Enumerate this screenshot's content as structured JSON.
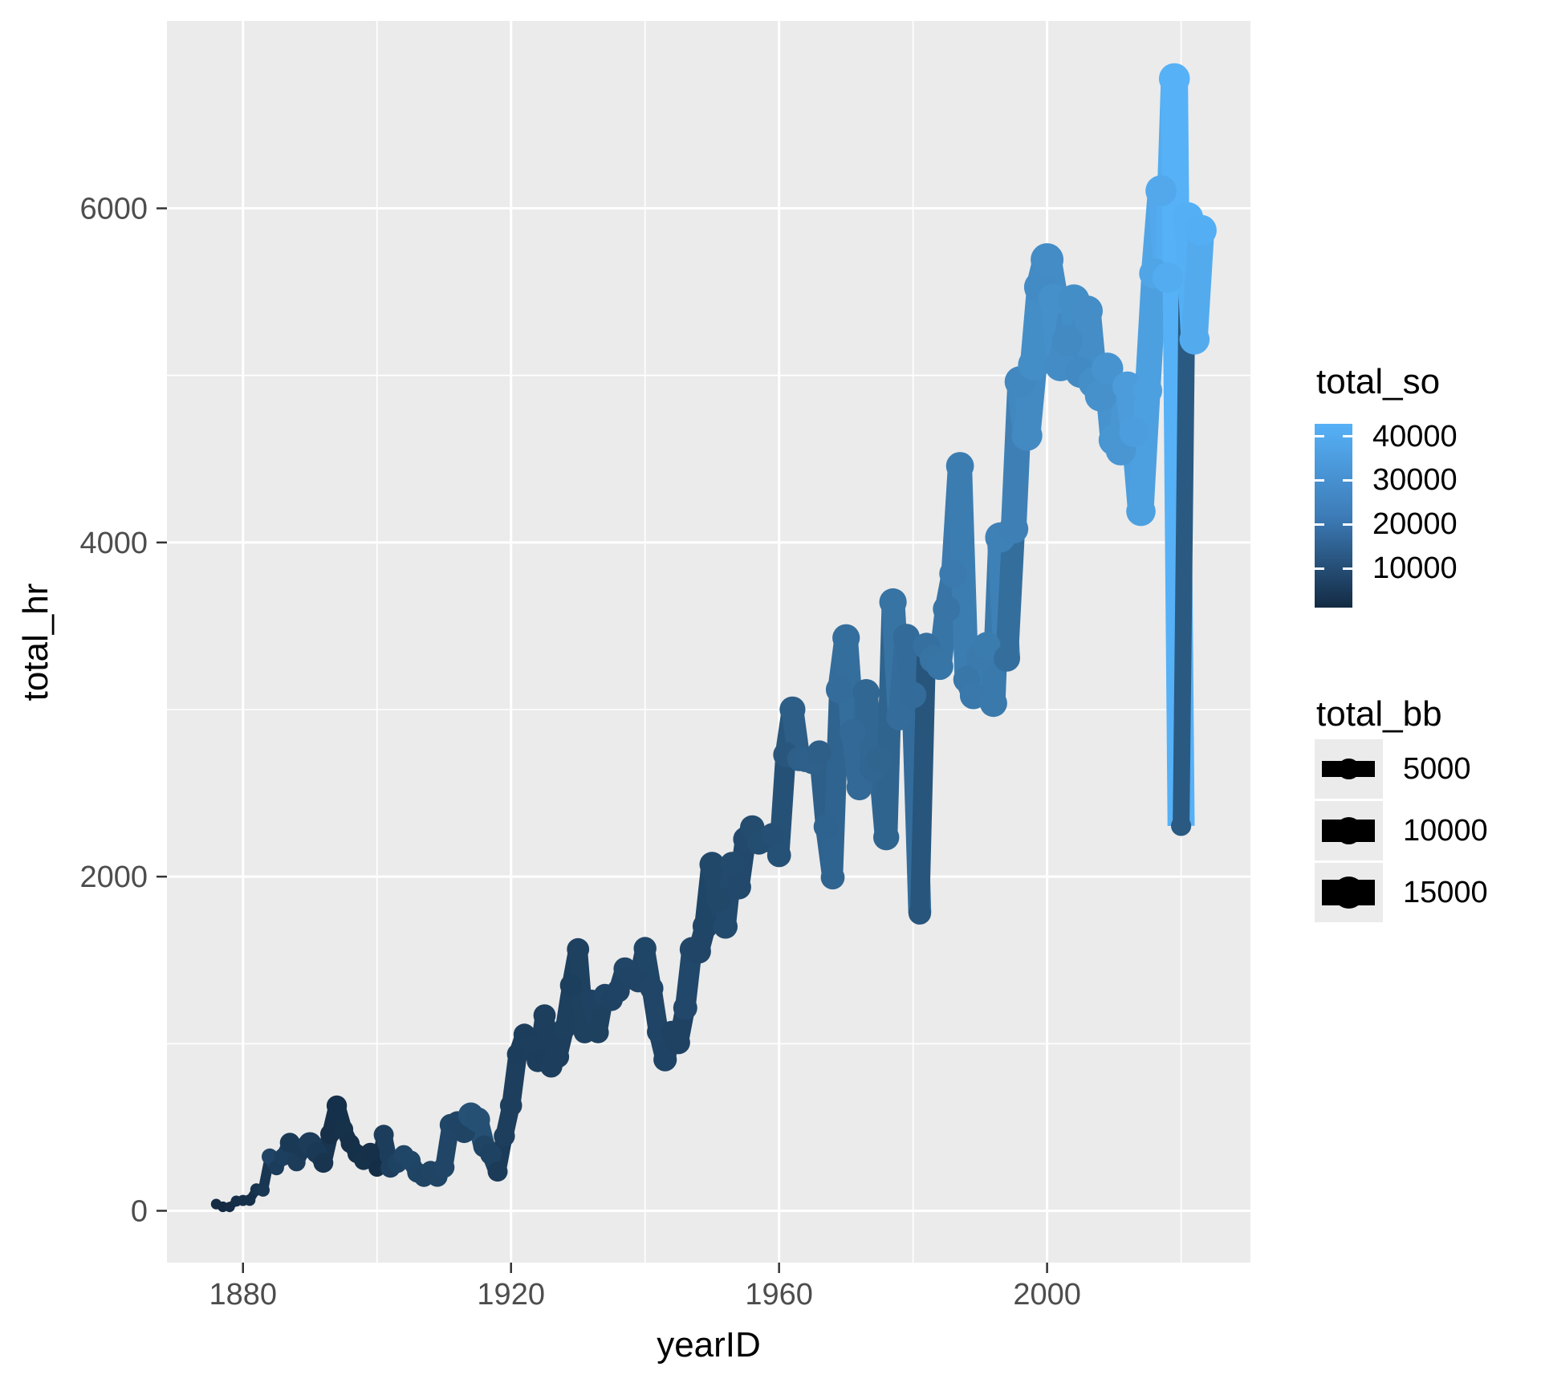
{
  "chart_data": {
    "type": "line",
    "title": "",
    "xlabel": "yearID",
    "ylabel": "total_hr",
    "x_ticks": [
      1880,
      1920,
      1960,
      2000
    ],
    "x_tick_labels": [
      "1880",
      "1920",
      "1960",
      "2000"
    ],
    "x_minor_ticks": [
      1900,
      1940,
      1980,
      2020
    ],
    "y_ticks": [
      0,
      2000,
      4000,
      6000
    ],
    "y_tick_labels": [
      "0",
      "2000",
      "4000",
      "6000"
    ],
    "y_minor_ticks": [
      1000,
      3000,
      5000
    ],
    "xlim": [
      1868.65,
      2030.35
    ],
    "ylim": [
      -310,
      7122
    ],
    "grid": true,
    "legend_position": "right",
    "color_scale": {
      "title": "total_so",
      "low_color": "#132B43",
      "high_color": "#56B1F7",
      "domain": [
        1064,
        42823
      ],
      "ticks": [
        40000,
        30000,
        20000,
        10000
      ],
      "tick_labels": [
        "40000",
        "30000",
        "20000",
        "10000"
      ]
    },
    "size_scale": {
      "title": "total_bb",
      "domain": [
        300,
        18237
      ],
      "ticks": [
        5000,
        10000,
        15000
      ],
      "tick_labels": [
        "5000",
        "10000",
        "15000"
      ]
    },
    "columns": [
      "yearID",
      "total_hr",
      "total_so",
      "total_bb"
    ],
    "points": [
      [
        1876,
        40,
        1400,
        340
      ],
      [
        1877,
        24,
        1064,
        345
      ],
      [
        1878,
        23,
        1575,
        300
      ],
      [
        1879,
        58,
        2367,
        510
      ],
      [
        1880,
        62,
        2716,
        585
      ],
      [
        1881,
        64,
        2268,
        685
      ],
      [
        1882,
        127,
        3835,
        1000
      ],
      [
        1883,
        124,
        4603,
        1330
      ],
      [
        1884,
        324,
        9006,
        2970
      ],
      [
        1885,
        258,
        6323,
        2300
      ],
      [
        1886,
        323,
        7445,
        3900
      ],
      [
        1887,
        407,
        5315,
        5400
      ],
      [
        1888,
        290,
        6411,
        4000
      ],
      [
        1889,
        375,
        5485,
        6000
      ],
      [
        1890,
        401,
        6492,
        8000
      ],
      [
        1891,
        349,
        5550,
        6200
      ],
      [
        1892,
        287,
        3934,
        5290
      ],
      [
        1893,
        460,
        2716,
        5190
      ],
      [
        1894,
        629,
        2606,
        5700
      ],
      [
        1895,
        488,
        2798,
        4910
      ],
      [
        1896,
        403,
        2727,
        4670
      ],
      [
        1897,
        342,
        2506,
        4600
      ],
      [
        1898,
        300,
        2795,
        4560
      ],
      [
        1899,
        350,
        2651,
        4740
      ],
      [
        1900,
        254,
        2000,
        3250
      ],
      [
        1901,
        455,
        6940,
        5400
      ],
      [
        1902,
        258,
        7000,
        5300
      ],
      [
        1903,
        285,
        8200,
        5300
      ],
      [
        1904,
        334,
        9300,
        5200
      ],
      [
        1905,
        300,
        9350,
        5500
      ],
      [
        1906,
        229,
        8700,
        5400
      ],
      [
        1907,
        203,
        8500,
        5400
      ],
      [
        1908,
        239,
        8800,
        5300
      ],
      [
        1909,
        205,
        8800,
        5800
      ],
      [
        1910,
        260,
        9100,
        6200
      ],
      [
        1911,
        514,
        9450,
        7000
      ],
      [
        1912,
        530,
        8950,
        7100
      ],
      [
        1913,
        472,
        8700,
        7200
      ],
      [
        1914,
        573,
        12800,
        9800
      ],
      [
        1915,
        545,
        12500,
        9600
      ],
      [
        1916,
        385,
        8800,
        6900
      ],
      [
        1917,
        339,
        8200,
        6600
      ],
      [
        1918,
        235,
        6200,
        5400
      ],
      [
        1919,
        447,
        7000,
        6300
      ],
      [
        1920,
        630,
        7150,
        7000
      ],
      [
        1921,
        937,
        6900,
        6650
      ],
      [
        1922,
        1055,
        6900,
        6780
      ],
      [
        1923,
        983,
        7020,
        7270
      ],
      [
        1924,
        897,
        6900,
        7150
      ],
      [
        1925,
        1169,
        7020,
        7150
      ],
      [
        1926,
        864,
        7150,
        7220
      ],
      [
        1927,
        922,
        7150,
        7150
      ],
      [
        1928,
        1093,
        7640,
        7000
      ],
      [
        1929,
        1349,
        7390,
        7390
      ],
      [
        1930,
        1565,
        7880,
        7200
      ],
      [
        1931,
        1068,
        7880,
        6900
      ],
      [
        1932,
        1260,
        8380,
        6410
      ],
      [
        1933,
        1067,
        7880,
        6580
      ],
      [
        1934,
        1291,
        8870,
        7150
      ],
      [
        1935,
        1263,
        8380,
        7270
      ],
      [
        1936,
        1316,
        8620,
        7790
      ],
      [
        1937,
        1449,
        9120,
        7520
      ],
      [
        1938,
        1393,
        8870,
        7910
      ],
      [
        1939,
        1376,
        8870,
        7690
      ],
      [
        1940,
        1571,
        9360,
        7640
      ],
      [
        1941,
        1331,
        9120,
        8130
      ],
      [
        1942,
        1071,
        8870,
        7840
      ],
      [
        1943,
        905,
        8620,
        8130
      ],
      [
        1944,
        1069,
        8380,
        7740
      ],
      [
        1945,
        1007,
        8380,
        7980
      ],
      [
        1946,
        1215,
        10100,
        8670
      ],
      [
        1947,
        1565,
        9610,
        9170
      ],
      [
        1948,
        1553,
        9120,
        9270
      ],
      [
        1949,
        1704,
        9360,
        9980
      ],
      [
        1950,
        2073,
        9860,
        9730
      ],
      [
        1951,
        1863,
        9860,
        9040
      ],
      [
        1952,
        1701,
        10600,
        8900
      ],
      [
        1953,
        2076,
        10600,
        8850
      ],
      [
        1954,
        1937,
        10350,
        9170
      ],
      [
        1955,
        2224,
        10840,
        9360
      ],
      [
        1956,
        2294,
        11330,
        9070
      ],
      [
        1957,
        2202,
        11580,
        8250
      ],
      [
        1958,
        2217,
        11830,
        8250
      ],
      [
        1959,
        2250,
        12320,
        8230
      ],
      [
        1960,
        2128,
        13060,
        8620
      ],
      [
        1961,
        2730,
        14500,
        9700
      ],
      [
        1962,
        3001,
        16850,
        10340
      ],
      [
        1963,
        2704,
        17170,
        8980
      ],
      [
        1964,
        2699,
        17500,
        9100
      ],
      [
        1965,
        2688,
        17660,
        9360
      ],
      [
        1966,
        2743,
        17170,
        8910
      ],
      [
        1967,
        2299,
        18630,
        9270
      ],
      [
        1968,
        1995,
        18950,
        8620
      ],
      [
        1969,
        3119,
        21600,
        11630
      ],
      [
        1970,
        3429,
        21900,
        11900
      ],
      [
        1971,
        2863,
        20300,
        11000
      ],
      [
        1972,
        2534,
        20400,
        10370
      ],
      [
        1973,
        3102,
        19700,
        11390
      ],
      [
        1974,
        2649,
        19500,
        11000
      ],
      [
        1975,
        2698,
        19000,
        11200
      ],
      [
        1976,
        2235,
        18700,
        10540
      ],
      [
        1977,
        3644,
        23380,
        11920
      ],
      [
        1978,
        2956,
        21700,
        11290
      ],
      [
        1979,
        3433,
        21200,
        11410
      ],
      [
        1980,
        3087,
        21300,
        11080
      ],
      [
        1981,
        1781,
        14300,
        7460
      ],
      [
        1982,
        3379,
        22700,
        11500
      ],
      [
        1983,
        3301,
        23400,
        11710
      ],
      [
        1984,
        3258,
        24200,
        11500
      ],
      [
        1985,
        3602,
        24100,
        11920
      ],
      [
        1986,
        3813,
        25800,
        12510
      ],
      [
        1987,
        4458,
        26600,
        12380
      ],
      [
        1988,
        3180,
        24700,
        11290
      ],
      [
        1989,
        3083,
        25100,
        11580
      ],
      [
        1990,
        3317,
        25700,
        11880
      ],
      [
        1991,
        3383,
        26200,
        11790
      ],
      [
        1992,
        3038,
        25300,
        11880
      ],
      [
        1993,
        4030,
        28000,
        15020
      ],
      [
        1994,
        3306,
        21800,
        10980
      ],
      [
        1995,
        4081,
        27600,
        14030
      ],
      [
        1996,
        4962,
        30167,
        16330
      ],
      [
        1997,
        4640,
        30774,
        15560
      ],
      [
        1998,
        5064,
        31893,
        16180
      ],
      [
        1999,
        5528,
        31119,
        18030
      ],
      [
        2000,
        5693,
        31356,
        18237
      ],
      [
        2001,
        5458,
        32404,
        15750
      ],
      [
        2002,
        5059,
        31394,
        16380
      ],
      [
        2003,
        5207,
        30801,
        15890
      ],
      [
        2004,
        5451,
        31828,
        16230
      ],
      [
        2005,
        5017,
        30644,
        15260
      ],
      [
        2006,
        5386,
        31655,
        15840
      ],
      [
        2007,
        4957,
        32189,
        16180
      ],
      [
        2008,
        4878,
        32884,
        16620
      ],
      [
        2009,
        5042,
        33591,
        16620
      ],
      [
        2010,
        4613,
        34306,
        15800
      ],
      [
        2011,
        4552,
        34488,
        15110
      ],
      [
        2012,
        4934,
        36426,
        14820
      ],
      [
        2013,
        4661,
        36710,
        14680
      ],
      [
        2014,
        4186,
        37441,
        14000
      ],
      [
        2015,
        4909,
        37446,
        14100
      ],
      [
        2016,
        5610,
        38982,
        15110
      ],
      [
        2017,
        6105,
        40104,
        15840
      ],
      [
        2018,
        5585,
        41207,
        15700
      ],
      [
        2019,
        6776,
        42823,
        15895
      ],
      [
        2020,
        2304,
        15586,
        5510
      ],
      [
        2021,
        5944,
        42145,
        15794
      ],
      [
        2022,
        5215,
        40812,
        14853
      ],
      [
        2023,
        5868,
        41843,
        15819
      ]
    ]
  },
  "theme": {
    "panel_bg": "#EBEBEB",
    "grid_color": "#FFFFFF",
    "tick_color": "#333333",
    "tick_label_color": "#4D4D4D",
    "title_color": "#000000",
    "legend_key_bg": "#EBEBEB",
    "glyph_color": "#000000"
  }
}
